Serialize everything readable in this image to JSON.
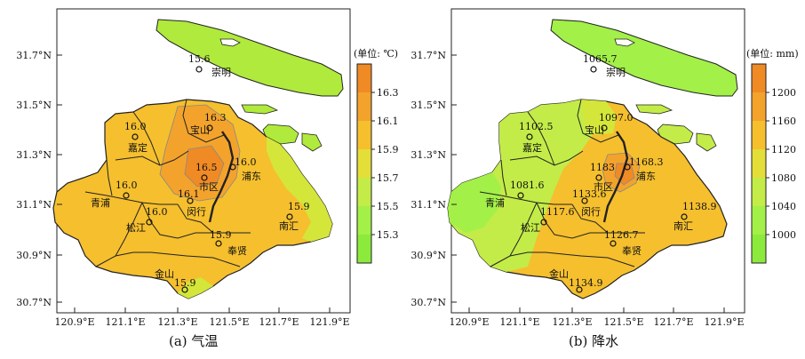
{
  "panels": [
    {
      "id": "a",
      "caption": "(a) 气温",
      "unit": "(单位: ℃)",
      "colorbar": {
        "ticks": [
          "16.3",
          "16.1",
          "15.9",
          "15.7",
          "15.5",
          "15.3"
        ],
        "colors": [
          "#f08a24",
          "#f3a32c",
          "#f5bf2e",
          "#e4de38",
          "#c3ec48",
          "#a3f048",
          "#8cea3c"
        ]
      },
      "stations": [
        {
          "name": "崇明",
          "value": "15.6"
        },
        {
          "name": "宝山",
          "value": "16.3"
        },
        {
          "name": "嘉定",
          "value": "16.0"
        },
        {
          "name": "市区",
          "value": "16.5"
        },
        {
          "name": "浦东",
          "value": "16.0"
        },
        {
          "name": "青浦",
          "value": "16.0"
        },
        {
          "name": "闵行",
          "value": "16.1"
        },
        {
          "name": "松江",
          "value": "16.0"
        },
        {
          "name": "南汇",
          "value": "15.9"
        },
        {
          "name": "奉贤",
          "value": "15.9"
        },
        {
          "name": "金山",
          "value": "15.9"
        }
      ]
    },
    {
      "id": "b",
      "caption": "(b) 降水",
      "unit": "(单位: mm)",
      "colorbar": {
        "ticks": [
          "1200",
          "1160",
          "1120",
          "1080",
          "1040",
          "1000"
        ],
        "colors": [
          "#f08a24",
          "#f3a32c",
          "#f5bf2e",
          "#e4de38",
          "#c3ec48",
          "#a3f048",
          "#8cea3c"
        ]
      },
      "stations": [
        {
          "name": "崇明",
          "value": "1065.7"
        },
        {
          "name": "宝山",
          "value": "1097.0"
        },
        {
          "name": "嘉定",
          "value": "1102.5"
        },
        {
          "name": "市区",
          "value": "1183"
        },
        {
          "name": "浦东",
          "value": "1168.3"
        },
        {
          "name": "青浦",
          "value": "1081.6"
        },
        {
          "name": "闵行",
          "value": "1133.6"
        },
        {
          "name": "松江",
          "value": "1117.6"
        },
        {
          "name": "南汇",
          "value": "1138.9"
        },
        {
          "name": "奉贤",
          "value": "1126.7"
        },
        {
          "name": "金山",
          "value": "1134.9"
        }
      ]
    }
  ],
  "axes": {
    "x_ticks": [
      "120.9°E",
      "121.1°E",
      "121.3°E",
      "121.5°E",
      "121.7°E",
      "121.9°E"
    ],
    "y_ticks": [
      "31.7°N",
      "31.5°N",
      "31.3°N",
      "31.1°N",
      "30.9°N",
      "30.7°N"
    ]
  }
}
